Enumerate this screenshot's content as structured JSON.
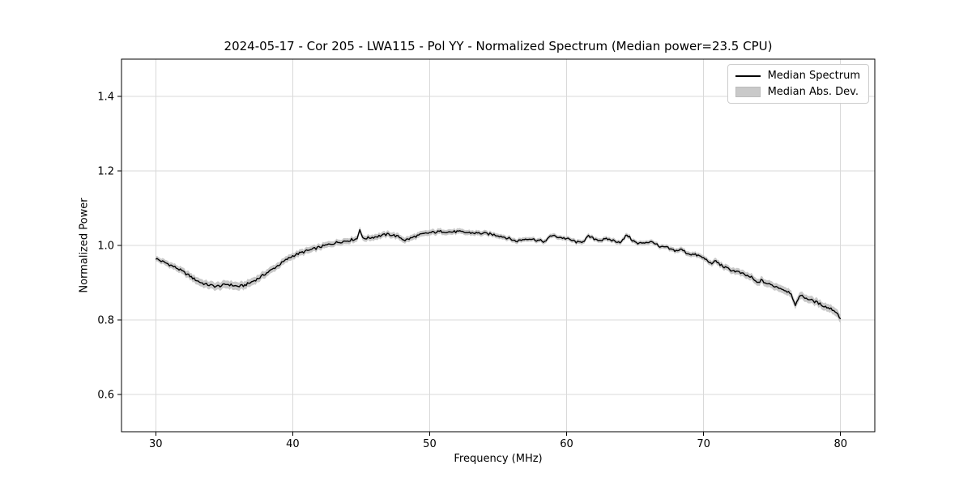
{
  "chart_data": {
    "type": "line",
    "title": "2024-05-17 - Cor 205 - LWA115 - Pol YY - Normalized Spectrum (Median power=23.5 CPU)",
    "xlabel": "Frequency (MHz)",
    "ylabel": "Normalized Power",
    "xlim": [
      27.5,
      82.5
    ],
    "ylim": [
      0.5,
      1.5
    ],
    "xticks": [
      30,
      40,
      50,
      60,
      70,
      80
    ],
    "xtick_labels": [
      "30",
      "40",
      "50",
      "60",
      "70",
      "80"
    ],
    "yticks": [
      0.6,
      0.8,
      1.0,
      1.2,
      1.4
    ],
    "ytick_labels": [
      "0.6",
      "0.8",
      "1.0",
      "1.2",
      "1.4"
    ],
    "grid": true,
    "grid_color": "#d9d9d9",
    "background": "#ffffff",
    "legend": {
      "position": "upper right",
      "entries": [
        {
          "label": "Median Spectrum",
          "type": "line",
          "color": "#000000"
        },
        {
          "label": "Median Abs. Dev.",
          "type": "patch",
          "color": "#c9c9c9"
        }
      ]
    },
    "series": [
      {
        "name": "Median Spectrum",
        "color": "#000000",
        "linewidth": 1.4,
        "x": [
          30.0,
          30.4,
          30.8,
          31.2,
          31.6,
          32.0,
          32.4,
          32.8,
          33.2,
          33.6,
          34.0,
          34.4,
          34.8,
          35.2,
          35.6,
          36.0,
          36.4,
          36.8,
          37.2,
          37.6,
          38.0,
          38.4,
          38.8,
          39.2,
          39.6,
          40.0,
          40.5,
          41.0,
          41.5,
          42.0,
          42.5,
          43.0,
          43.5,
          44.0,
          44.4,
          44.7,
          44.9,
          45.1,
          45.5,
          46.0,
          46.5,
          47.0,
          47.4,
          47.8,
          48.2,
          48.6,
          49.0,
          49.5,
          50.0,
          50.5,
          51.0,
          51.5,
          52.0,
          52.5,
          53.0,
          53.5,
          54.0,
          54.5,
          55.0,
          55.5,
          56.0,
          56.3,
          56.7,
          57.2,
          57.6,
          58.0,
          58.5,
          58.8,
          59.2,
          59.6,
          60.0,
          60.5,
          60.9,
          61.3,
          61.6,
          62.0,
          62.5,
          63.0,
          63.5,
          64.0,
          64.4,
          64.8,
          65.2,
          65.6,
          66.0,
          66.4,
          66.8,
          67.2,
          67.6,
          68.0,
          68.4,
          68.8,
          69.2,
          69.6,
          70.0,
          70.4,
          70.6,
          70.8,
          71.2,
          71.6,
          72.0,
          72.5,
          73.0,
          73.5,
          73.9,
          74.2,
          74.6,
          75.0,
          75.5,
          76.0,
          76.4,
          76.7,
          77.0,
          77.4,
          77.8,
          78.2,
          78.6,
          79.0,
          79.3,
          79.6,
          79.8,
          80.0
        ],
        "y": [
          0.965,
          0.958,
          0.952,
          0.945,
          0.938,
          0.929,
          0.92,
          0.91,
          0.902,
          0.896,
          0.893,
          0.89,
          0.892,
          0.896,
          0.893,
          0.89,
          0.892,
          0.898,
          0.906,
          0.914,
          0.924,
          0.933,
          0.943,
          0.953,
          0.963,
          0.972,
          0.979,
          0.985,
          0.99,
          0.996,
          1.001,
          1.006,
          1.01,
          1.013,
          1.016,
          1.018,
          1.045,
          1.019,
          1.02,
          1.023,
          1.027,
          1.03,
          1.027,
          1.022,
          1.014,
          1.019,
          1.025,
          1.03,
          1.034,
          1.036,
          1.038,
          1.036,
          1.037,
          1.035,
          1.034,
          1.033,
          1.032,
          1.03,
          1.027,
          1.022,
          1.016,
          1.011,
          1.015,
          1.019,
          1.016,
          1.013,
          1.01,
          1.027,
          1.024,
          1.021,
          1.018,
          1.012,
          1.007,
          1.014,
          1.024,
          1.018,
          1.014,
          1.017,
          1.012,
          1.009,
          1.029,
          1.014,
          1.004,
          1.008,
          1.009,
          1.008,
          0.994,
          0.996,
          0.989,
          0.986,
          0.989,
          0.979,
          0.976,
          0.973,
          0.966,
          0.957,
          0.947,
          0.96,
          0.949,
          0.94,
          0.934,
          0.929,
          0.921,
          0.914,
          0.899,
          0.906,
          0.898,
          0.893,
          0.887,
          0.879,
          0.872,
          0.835,
          0.867,
          0.86,
          0.854,
          0.848,
          0.841,
          0.834,
          0.83,
          0.824,
          0.815,
          0.804
        ]
      }
    ],
    "band": {
      "name": "Median Abs. Dev.",
      "color": "#c9c9c9",
      "x": [
        30,
        33,
        36,
        39,
        43,
        48,
        53,
        58,
        63,
        67,
        70,
        73,
        76,
        78,
        80
      ],
      "halfwidth": [
        0.007,
        0.01,
        0.011,
        0.009,
        0.008,
        0.008,
        0.007,
        0.006,
        0.006,
        0.006,
        0.007,
        0.009,
        0.01,
        0.01,
        0.011
      ]
    },
    "noise_amplitude": 0.0035,
    "sample_step_mhz": 0.1
  }
}
